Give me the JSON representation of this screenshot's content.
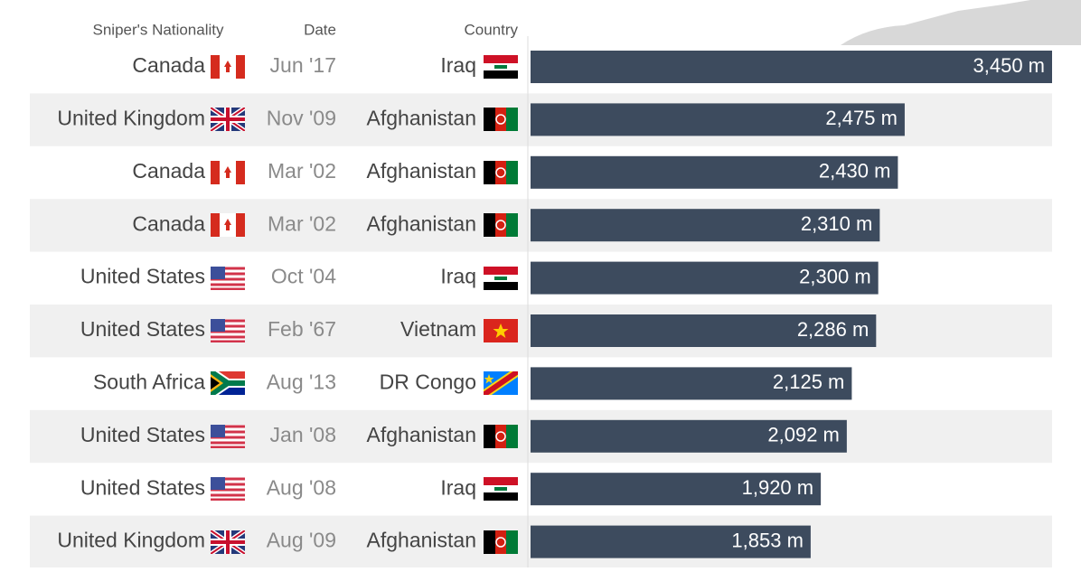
{
  "chart_data": {
    "type": "bar",
    "column_headers": [
      "Sniper's Nationality",
      "Date",
      "Country"
    ],
    "categories": [
      "Canada",
      "United Kingdom",
      "Canada",
      "Canada",
      "United States",
      "United States",
      "South Africa",
      "United States",
      "United States",
      "United Kingdom"
    ],
    "dates": [
      "Jun '17",
      "Nov '09",
      "Mar '02",
      "Mar '02",
      "Oct '04",
      "Feb '67",
      "Aug '13",
      "Jan '08",
      "Aug '08",
      "Aug '09"
    ],
    "countries": [
      "Iraq",
      "Afghanistan",
      "Afghanistan",
      "Afghanistan",
      "Iraq",
      "Vietnam",
      "DR Congo",
      "Afghanistan",
      "Iraq",
      "Afghanistan"
    ],
    "values": [
      3450,
      2475,
      2430,
      2310,
      2300,
      2286,
      2125,
      2092,
      1920,
      1853
    ],
    "value_labels": [
      "3,450 m",
      "2,475 m",
      "2,430 m",
      "2,310 m",
      "2,300 m",
      "2,286 m",
      "2,125 m",
      "2,092 m",
      "1,920 m",
      "1,853 m"
    ],
    "color": "#3d4b5e"
  }
}
